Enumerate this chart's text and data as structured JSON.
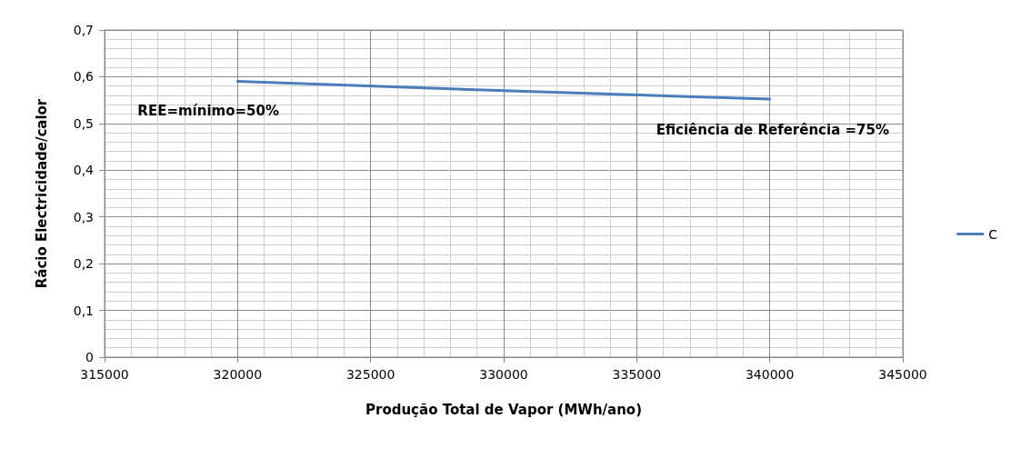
{
  "chart_data": {
    "type": "line",
    "xlabel": "Produção Total de Vapor (MWh/ano)",
    "ylabel": "Rácio Electricidade/calor",
    "x": [
      320000,
      330000,
      340000
    ],
    "series": [
      {
        "name": "C",
        "color": "#4a7ebb",
        "values": [
          0.59,
          0.57,
          0.552
        ]
      }
    ],
    "xlim": [
      315000,
      345000
    ],
    "xticks": [
      315000,
      320000,
      325000,
      330000,
      335000,
      340000,
      345000
    ],
    "ylim": [
      0,
      0.7
    ],
    "yticks": [
      0,
      {
        "value": 0.1,
        "label": "0,1"
      },
      {
        "value": 0.2,
        "label": "0,2"
      },
      {
        "value": 0.3,
        "label": "0,3"
      },
      {
        "value": 0.4,
        "label": "0,4"
      },
      {
        "value": 0.5,
        "label": "0,5"
      },
      {
        "value": 0.6,
        "label": "0,6"
      },
      {
        "value": 0.7,
        "label": "0,7"
      }
    ],
    "grid": true,
    "legend": "right",
    "marker": "none",
    "line_style": "solid",
    "annotations": [
      {
        "text": "REE=mínimo=50%",
        "x": 320000,
        "y": 0.59
      },
      {
        "text": "Eficiência de Referência =75%",
        "x": 340000,
        "y": 0.552
      }
    ]
  }
}
